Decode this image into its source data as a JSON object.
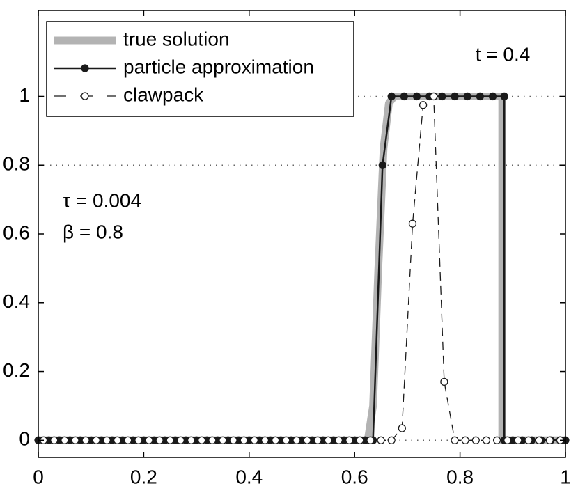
{
  "chart_data": {
    "type": "line",
    "annotations": [
      "t = 0.4",
      "τ = 0.004",
      "β = 0.8"
    ],
    "xlim": [
      0,
      1
    ],
    "ylim": [
      -0.05,
      1.25
    ],
    "xticks": [
      0,
      0.2,
      0.4,
      0.6,
      0.8,
      1
    ],
    "yticks": [
      0,
      0.2,
      0.4,
      0.6,
      0.8,
      1
    ],
    "grid_lines_y": [
      0,
      0.8,
      1
    ],
    "legend": "upper-left",
    "series": [
      {
        "name": "true solution",
        "color": "#b3b3b3",
        "line_width": 11,
        "marker": "none",
        "dash": false,
        "x": [
          0,
          0.625,
          0.635,
          0.645,
          0.655,
          0.665,
          0.675,
          0.88,
          0.88,
          1
        ],
        "values": [
          0,
          0,
          0.1,
          0.5,
          0.85,
          0.98,
          1,
          1,
          0,
          0
        ]
      },
      {
        "name": "particle approximation",
        "color": "#1a1a1a",
        "line_width": 2.5,
        "marker": "filled",
        "dash": false,
        "x": [
          0,
          0.02,
          0.04,
          0.06,
          0.08,
          0.1,
          0.12,
          0.14,
          0.16,
          0.18,
          0.2,
          0.22,
          0.24,
          0.26,
          0.28,
          0.3,
          0.32,
          0.34,
          0.36,
          0.38,
          0.4,
          0.42,
          0.44,
          0.46,
          0.48,
          0.5,
          0.52,
          0.54,
          0.56,
          0.58,
          0.6,
          0.62,
          0.635,
          0.653,
          0.67,
          0.694,
          0.718,
          0.742,
          0.766,
          0.79,
          0.814,
          0.838,
          0.862,
          0.884,
          0.884,
          0.9,
          0.918,
          0.936,
          0.954,
          0.972,
          0.99,
          1
        ],
        "values": [
          0,
          0,
          0,
          0,
          0,
          0,
          0,
          0,
          0,
          0,
          0,
          0,
          0,
          0,
          0,
          0,
          0,
          0,
          0,
          0,
          0,
          0,
          0,
          0,
          0,
          0,
          0,
          0,
          0,
          0,
          0,
          0,
          0,
          0.8,
          1,
          1,
          1,
          1,
          1,
          1,
          1,
          1,
          1,
          1,
          0,
          0,
          0,
          0,
          0,
          0,
          0,
          0
        ]
      },
      {
        "name": "clawpack",
        "color": "#1a1a1a",
        "line_width": 1.3,
        "marker": "open",
        "dash": true,
        "x": [
          0.01,
          0.03,
          0.05,
          0.07,
          0.09,
          0.11,
          0.13,
          0.15,
          0.17,
          0.19,
          0.21,
          0.23,
          0.25,
          0.27,
          0.29,
          0.31,
          0.33,
          0.35,
          0.37,
          0.39,
          0.41,
          0.43,
          0.45,
          0.47,
          0.49,
          0.51,
          0.53,
          0.55,
          0.57,
          0.59,
          0.61,
          0.63,
          0.65,
          0.67,
          0.69,
          0.71,
          0.73,
          0.75,
          0.77,
          0.79,
          0.81,
          0.83,
          0.85,
          0.87,
          0.89,
          0.91,
          0.93,
          0.95,
          0.97,
          0.99
        ],
        "values": [
          0,
          0,
          0,
          0,
          0,
          0,
          0,
          0,
          0,
          0,
          0,
          0,
          0,
          0,
          0,
          0,
          0,
          0,
          0,
          0,
          0,
          0,
          0,
          0,
          0,
          0,
          0,
          0,
          0,
          0,
          0,
          0,
          0,
          0,
          0.035,
          0.63,
          0.975,
          1,
          0.17,
          0,
          0,
          0,
          0,
          0,
          0,
          0,
          0,
          0,
          0,
          0
        ]
      }
    ]
  }
}
